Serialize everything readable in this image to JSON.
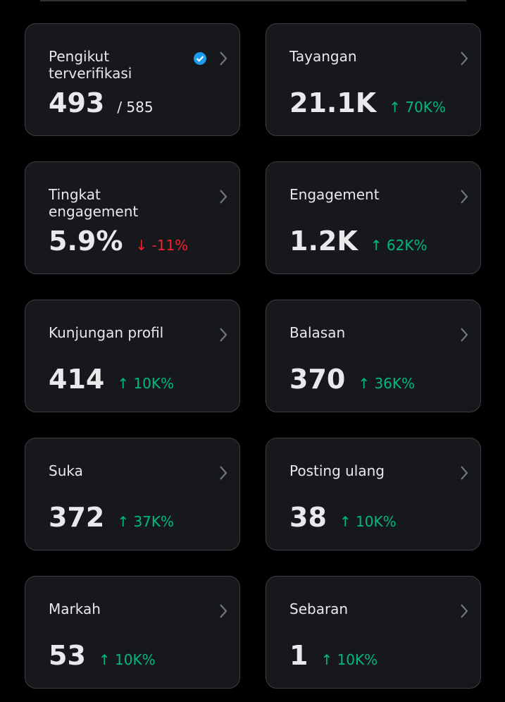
{
  "cards": [
    {
      "label": "Pengikut terverifikasi",
      "value": "493",
      "total": "/ 585",
      "verified": true
    },
    {
      "label": "Tayangan",
      "value": "21.1K",
      "change": "↑ 70K%",
      "change_color": "#00ba7c"
    },
    {
      "label": "Tingkat engagement",
      "value": "5.9%",
      "change": "↓ -11%",
      "change_color": "#f4212e"
    },
    {
      "label": "Engagement",
      "value": "1.2K",
      "change": "↑ 62K%",
      "change_color": "#00ba7c"
    },
    {
      "label": "Kunjungan profil",
      "value": "414",
      "change": "↑ 10K%",
      "change_color": "#00ba7c"
    },
    {
      "label": "Balasan",
      "value": "370",
      "change": "↑ 36K%",
      "change_color": "#00ba7c"
    },
    {
      "label": "Suka",
      "value": "372",
      "change": "↑ 37K%",
      "change_color": "#00ba7c"
    },
    {
      "label": "Posting ulang",
      "value": "38",
      "change": "↑ 10K%",
      "change_color": "#00ba7c"
    },
    {
      "label": "Markah",
      "value": "53",
      "change": "↑ 10K%",
      "change_color": "#00ba7c"
    },
    {
      "label": "Sebaran",
      "value": "1",
      "change": "↑ 10K%",
      "change_color": "#00ba7c"
    }
  ]
}
